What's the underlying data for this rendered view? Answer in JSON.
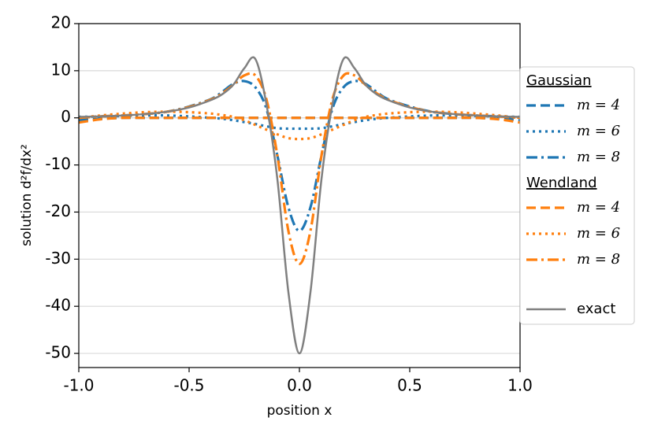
{
  "chart_data": {
    "type": "line",
    "xlabel": "position x",
    "ylabel": "solution d²f/dx²",
    "x": [
      -1,
      -0.9,
      -0.8,
      -0.7,
      -0.6,
      -0.5,
      -0.4,
      -0.35,
      -0.3,
      -0.25,
      -0.2,
      -0.15,
      -0.1,
      -0.05,
      0,
      0.05,
      0.1,
      0.15,
      0.2,
      0.25,
      0.3,
      0.35,
      0.4,
      0.5,
      0.6,
      0.7,
      0.8,
      0.9,
      1
    ],
    "xlim": [
      -1,
      1
    ],
    "xticks": [
      {
        "value": -1,
        "label": "-1.0"
      },
      {
        "value": -0.5,
        "label": "-0.5"
      },
      {
        "value": 0,
        "label": "0.0"
      },
      {
        "value": 0.5,
        "label": "0.5"
      },
      {
        "value": 1,
        "label": "1.0"
      }
    ],
    "ylim": [
      -53,
      20
    ],
    "yticks": [
      20,
      10,
      0,
      -10,
      -20,
      -30,
      -40,
      -50
    ],
    "grid": true,
    "legend": "right",
    "groups": [
      {
        "title": "Gaussian",
        "series": [
          {
            "name": "m = 4",
            "color": "#1f77b4",
            "dash": "dashed",
            "values": [
              -0.5,
              -0.2,
              0,
              0,
              0,
              0,
              0,
              0,
              0,
              0,
              0,
              0,
              0,
              0,
              0,
              0,
              0,
              0,
              0,
              0,
              0,
              0,
              0,
              0,
              0,
              0,
              0,
              -0.2,
              -0.5
            ]
          },
          {
            "name": "m = 6",
            "color": "#1f77b4",
            "dash": "dotted",
            "values": [
              0.2,
              0.3,
              0.4,
              0.5,
              0.5,
              0.3,
              0,
              -0.2,
              -0.5,
              -0.9,
              -1.3,
              -1.8,
              -2.2,
              -2.3,
              -2.3,
              -2.3,
              -2.2,
              -1.8,
              -1.3,
              -0.9,
              -0.5,
              -0.2,
              0,
              0.3,
              0.5,
              0.5,
              0.4,
              0.3,
              0.2
            ]
          },
          {
            "name": "m = 8",
            "color": "#1f77b4",
            "dash": "dashdot",
            "values": [
              0,
              0.3,
              0.5,
              0.8,
              1.3,
              2.4,
              4,
              5.5,
              7.2,
              7.8,
              6.5,
              2,
              -8,
              -19,
              -24,
              -19,
              -8,
              2,
              6.5,
              7.8,
              7.2,
              5.5,
              4,
              2.4,
              1.3,
              0.8,
              0.5,
              0.3,
              0
            ]
          }
        ]
      },
      {
        "title": "Wendland",
        "series": [
          {
            "name": "m = 4",
            "color": "#ff7f0e",
            "dash": "dashed",
            "values": [
              -1,
              -0.3,
              0,
              0,
              0,
              0,
              0,
              0,
              0,
              0,
              0,
              0,
              0,
              0,
              0,
              0,
              0,
              0,
              0,
              0,
              0,
              0,
              0,
              0,
              0,
              0,
              0,
              -0.3,
              -1
            ]
          },
          {
            "name": "m = 6",
            "color": "#ff7f0e",
            "dash": "dotted",
            "values": [
              0,
              0.5,
              0.9,
              1.2,
              1.3,
              1.2,
              0.9,
              0.6,
              0.2,
              -0.5,
              -1.5,
              -2.5,
              -3.5,
              -4.3,
              -4.5,
              -4.3,
              -3.5,
              -2.5,
              -1.5,
              -0.5,
              0.2,
              0.6,
              0.9,
              1.2,
              1.3,
              1.2,
              0.9,
              0.5,
              0
            ]
          },
          {
            "name": "m = 8",
            "color": "#ff7f0e",
            "dash": "dashdot",
            "values": [
              0,
              0.3,
              0.5,
              0.8,
              1.3,
              2.3,
              3.9,
              5.2,
              7,
              9,
              9,
              4,
              -8,
              -24,
              -31,
              -24,
              -8,
              4,
              9,
              9,
              7,
              5.2,
              3.9,
              2.3,
              1.3,
              0.8,
              0.5,
              0.3,
              0
            ]
          }
        ]
      }
    ],
    "series": [
      {
        "name": "exact",
        "color": "#808080",
        "dash": "solid",
        "values": [
          0.2,
          0.3,
          0.5,
          0.8,
          1.3,
          2.2,
          3.8,
          5,
          7,
          10.5,
          12.5,
          3,
          -13,
          -37,
          -50,
          -37,
          -13,
          3,
          12.5,
          10.5,
          7,
          5,
          3.8,
          2.2,
          1.3,
          0.8,
          0.5,
          0.3,
          0.2
        ]
      }
    ]
  }
}
